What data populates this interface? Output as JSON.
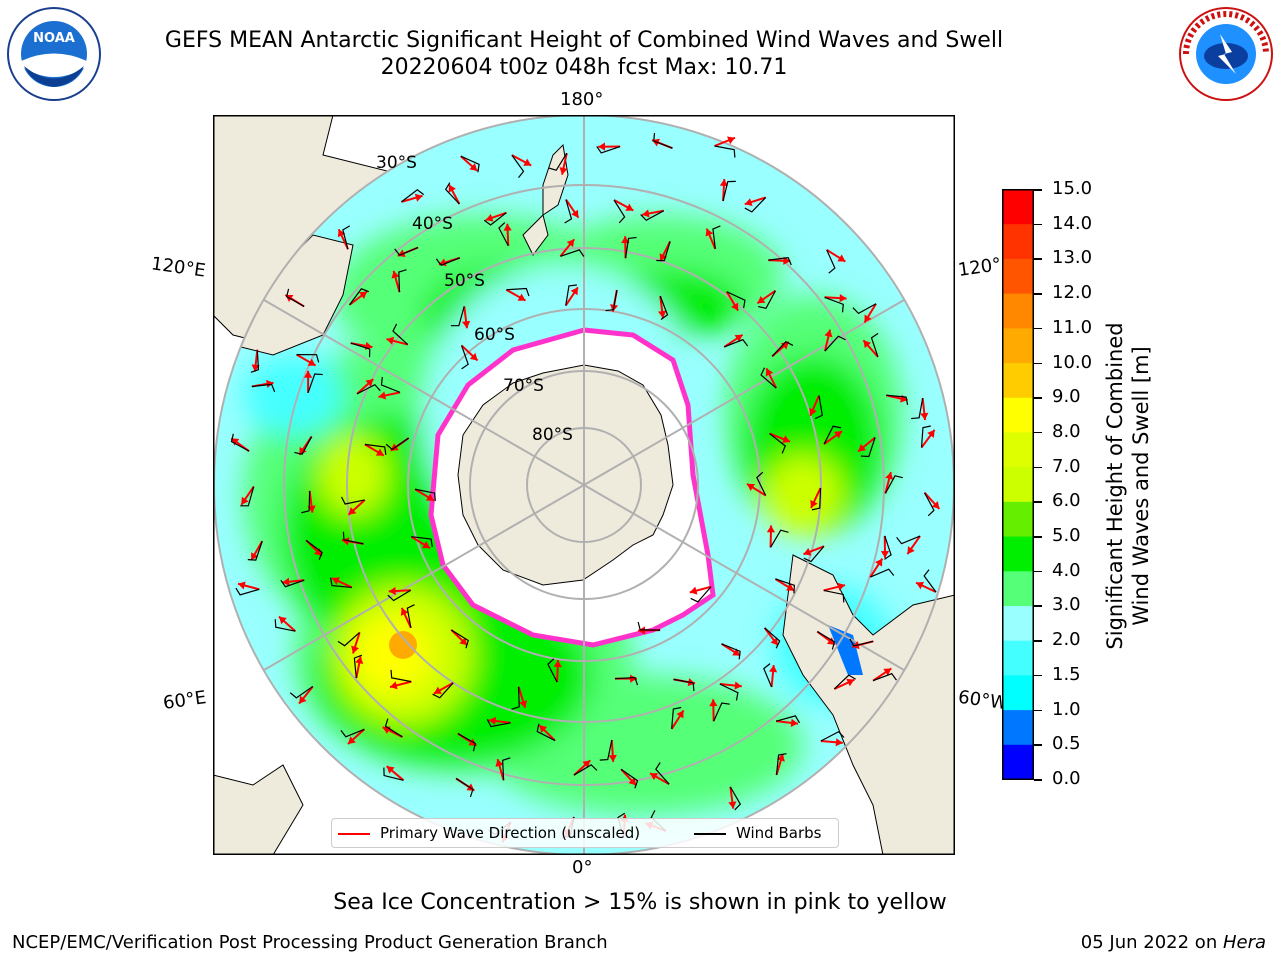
{
  "header": {
    "title_line1": "GEFS MEAN Antarctic Significant Height of Combined Wind Waves and Swell",
    "title_line2": "20220604 t00z 048h fcst   Max: 10.71"
  },
  "logos": {
    "left": {
      "name": "NOAA",
      "ring_text": "NATIONAL OCEANIC AND ATMOSPHERIC ADMINISTRATION · U.S. DEPARTMENT OF COMMERCE",
      "label": "NOAA"
    },
    "right": {
      "name": "National Weather Service",
      "ring_text": "NATIONAL WEATHER SERVICE"
    }
  },
  "map": {
    "projection": "south polar stereographic",
    "longitude_labels": {
      "top": "180°",
      "bottom": "0°",
      "left_upper": "120°E",
      "left_lower": "60°E",
      "right_upper": "120°",
      "right_lower": "60°W"
    },
    "latitude_labels": [
      "30°S",
      "40°S",
      "50°S",
      "60°S",
      "70°S",
      "80°S"
    ],
    "colors": {
      "land": "#efebdc",
      "sea_ice": "#ffffff",
      "ice_edge": "#ff33cc",
      "wind_barb": "#000000",
      "wave_arrow": "#ff0000",
      "grid": "#b0b0b0"
    }
  },
  "legend": {
    "primary_wave": "Primary Wave Direction (unscaled)",
    "wind_barbs": "Wind Barbs"
  },
  "colorbar": {
    "label_line1": "Significant Height of Combined",
    "label_line2": "Wind Waves and Swell [m]",
    "ticks": [
      "0.0",
      "0.5",
      "1.0",
      "1.5",
      "2.0",
      "3.0",
      "4.0",
      "5.0",
      "6.0",
      "7.0",
      "8.0",
      "9.0",
      "10.0",
      "11.0",
      "12.0",
      "13.0",
      "14.0",
      "15.0"
    ],
    "colors": [
      "#0000ff",
      "#0077ff",
      "#00ffff",
      "#44ffff",
      "#99ffff",
      "#55ff77",
      "#00ee00",
      "#66ee00",
      "#ccff00",
      "#ddff00",
      "#ffff00",
      "#ffcc00",
      "#ffaa00",
      "#ff8800",
      "#ff5500",
      "#ff3300",
      "#ff0000"
    ]
  },
  "subtitle": "Sea Ice Concentration > 15% is shown in pink to yellow",
  "footer": {
    "left": "NCEP/EMC/Verification Post Processing Product Generation Branch",
    "right_date": "05 Jun 2022 on ",
    "right_machine": "Hera"
  }
}
